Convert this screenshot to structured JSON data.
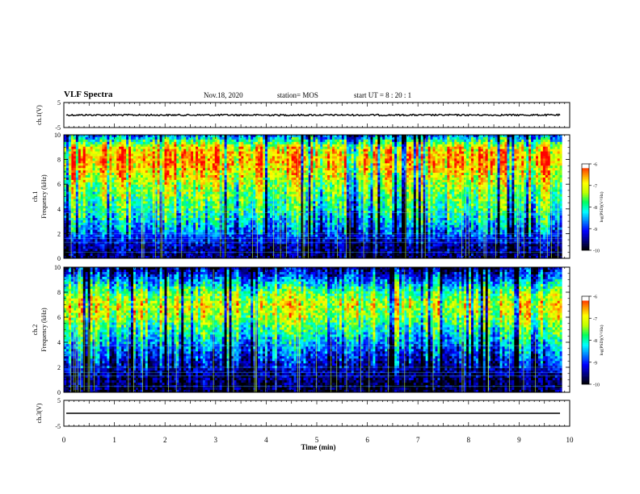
{
  "header": {
    "title": "VLF Spectra",
    "date": "Nov.18, 2020",
    "station": "station= MOS",
    "start_ut": "start  UT =   8 : 20 : 1"
  },
  "colorscale": {
    "stops": [
      "#000000",
      "#000080",
      "#0000ff",
      "#0080ff",
      "#00ffff",
      "#00ff60",
      "#c0ff00",
      "#ffff00",
      "#ff8000",
      "#ff0000",
      "#ffffff"
    ],
    "label": "log(PSD)(V²/Hz)",
    "ticks": [
      "-6",
      "-7",
      "-8",
      "-9",
      "-10"
    ],
    "range": [
      -10,
      -6
    ]
  },
  "chart_data": [
    {
      "type": "line",
      "name": "ch1-waveform",
      "ylabel": "ch.1(V)",
      "ylim": [
        -5,
        5
      ],
      "yticks": [
        "5",
        "-5"
      ],
      "x": [
        0,
        10
      ],
      "y": [
        0,
        0
      ]
    },
    {
      "type": "heatmap",
      "name": "ch1-spectrogram",
      "ylabel": "ch.1\nFrequency (kHz)",
      "ylabel_channel": "ch.1",
      "ylabel_main": "Frequency (kHz)",
      "ylim": [
        0,
        10
      ],
      "yticks": [
        "0",
        "2",
        "4",
        "6",
        "8",
        "10"
      ],
      "xlim": [
        0,
        9.85
      ],
      "band_profile_kHz": [
        0,
        1,
        2,
        3,
        4,
        5,
        6,
        7,
        8,
        9,
        10
      ],
      "band_profile_logpsd": [
        -9.6,
        -9.4,
        -8.8,
        -8.3,
        -7.9,
        -7.6,
        -7.3,
        -6.8,
        -6.5,
        -6.9,
        -8.8
      ]
    },
    {
      "type": "heatmap",
      "name": "ch2-spectrogram",
      "ylabel": "ch.2\nFrequency (kHz)",
      "ylabel_channel": "ch.2",
      "ylabel_main": "Frequency (kHz)",
      "ylim": [
        0,
        10
      ],
      "yticks": [
        "0",
        "2",
        "4",
        "6",
        "8",
        "10"
      ],
      "xlim": [
        0,
        9.85
      ],
      "band_profile_kHz": [
        0,
        1,
        2,
        3,
        4,
        5,
        6,
        7,
        8,
        9,
        10
      ],
      "band_profile_logpsd": [
        -9.8,
        -9.6,
        -9.3,
        -8.9,
        -8.4,
        -7.9,
        -7.3,
        -7.0,
        -7.6,
        -8.6,
        -9.6
      ]
    },
    {
      "type": "line",
      "name": "ch3-waveform",
      "ylabel": "ch.3(V)",
      "ylim": [
        -5,
        5
      ],
      "yticks": [
        "5",
        "-5"
      ],
      "x": [
        0,
        10
      ],
      "y": [
        0,
        0
      ]
    }
  ],
  "xaxis": {
    "label": "Time  (min)",
    "range": [
      0,
      10
    ],
    "ticks": [
      "0",
      "1",
      "2",
      "3",
      "4",
      "5",
      "6",
      "7",
      "8",
      "9",
      "10"
    ]
  }
}
